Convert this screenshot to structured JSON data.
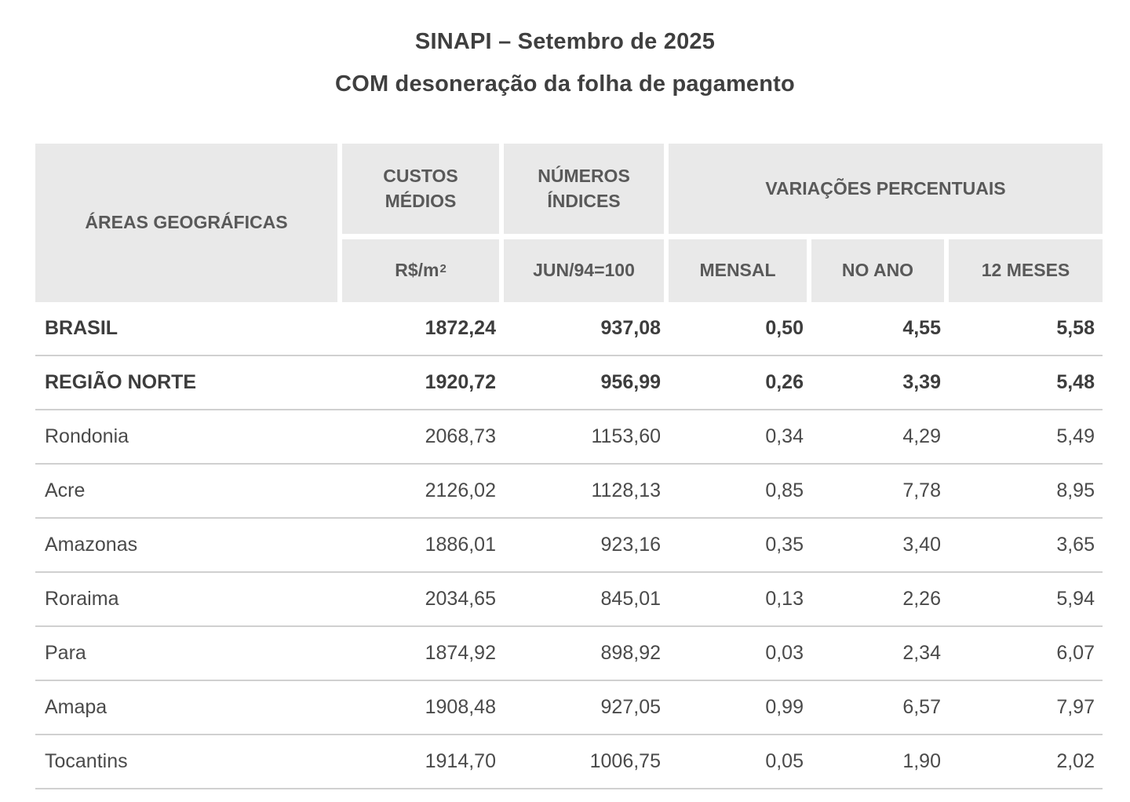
{
  "title": {
    "line1": "SINAPI – Setembro de 2025",
    "line2": "COM desoneração da folha de pagamento"
  },
  "colors": {
    "header_background": "#e9e9e9",
    "header_text": "#595959",
    "body_text": "#4a4a4a",
    "bold_text": "#3d3d3d",
    "row_divider": "#d0d0d0",
    "page_background": "#ffffff"
  },
  "table": {
    "headers": {
      "areas": "ÁREAS GEOGRÁFICAS",
      "custos": "CUSTOS MÉDIOS",
      "custos_unit_base": "R$/m",
      "custos_unit_sup": "2",
      "indices": "NÚMEROS ÍNDICES",
      "indices_unit": "JUN/94=100",
      "variacoes": "VARIAÇÕES PERCENTUAIS",
      "mensal": "MENSAL",
      "no_ano": "NO ANO",
      "doze_meses": "12 MESES"
    },
    "rows": [
      {
        "name": "BRASIL",
        "custo_medio": "1872,24",
        "numero_indice": "937,08",
        "mensal": "0,50",
        "no_ano": "4,55",
        "doze_meses": "5,58",
        "bold": true
      },
      {
        "name": "REGIÃO NORTE",
        "custo_medio": "1920,72",
        "numero_indice": "956,99",
        "mensal": "0,26",
        "no_ano": "3,39",
        "doze_meses": "5,48",
        "bold": true
      },
      {
        "name": "Rondonia",
        "custo_medio": "2068,73",
        "numero_indice": "1153,60",
        "mensal": "0,34",
        "no_ano": "4,29",
        "doze_meses": "5,49",
        "bold": false
      },
      {
        "name": "Acre",
        "custo_medio": "2126,02",
        "numero_indice": "1128,13",
        "mensal": "0,85",
        "no_ano": "7,78",
        "doze_meses": "8,95",
        "bold": false
      },
      {
        "name": "Amazonas",
        "custo_medio": "1886,01",
        "numero_indice": "923,16",
        "mensal": "0,35",
        "no_ano": "3,40",
        "doze_meses": "3,65",
        "bold": false
      },
      {
        "name": "Roraima",
        "custo_medio": "2034,65",
        "numero_indice": "845,01",
        "mensal": "0,13",
        "no_ano": "2,26",
        "doze_meses": "5,94",
        "bold": false
      },
      {
        "name": "Para",
        "custo_medio": "1874,92",
        "numero_indice": "898,92",
        "mensal": "0,03",
        "no_ano": "2,34",
        "doze_meses": "6,07",
        "bold": false
      },
      {
        "name": "Amapa",
        "custo_medio": "1908,48",
        "numero_indice": "927,05",
        "mensal": "0,99",
        "no_ano": "6,57",
        "doze_meses": "7,97",
        "bold": false
      },
      {
        "name": "Tocantins",
        "custo_medio": "1914,70",
        "numero_indice": "1006,75",
        "mensal": "0,05",
        "no_ano": "1,90",
        "doze_meses": "2,02",
        "bold": false
      }
    ]
  },
  "chart_data": {
    "type": "table",
    "title": "SINAPI – Setembro de 2025 — COM desoneração da folha de pagamento",
    "columns": [
      "ÁREAS GEOGRÁFICAS",
      "CUSTOS MÉDIOS R$/m2",
      "NÚMEROS ÍNDICES JUN/94=100",
      "VARIAÇÕES PERCENTUAIS MENSAL",
      "VARIAÇÕES PERCENTUAIS NO ANO",
      "VARIAÇÕES PERCENTUAIS 12 MESES"
    ],
    "rows": [
      [
        "BRASIL",
        1872.24,
        937.08,
        0.5,
        4.55,
        5.58
      ],
      [
        "REGIÃO NORTE",
        1920.72,
        956.99,
        0.26,
        3.39,
        5.48
      ],
      [
        "Rondonia",
        2068.73,
        1153.6,
        0.34,
        4.29,
        5.49
      ],
      [
        "Acre",
        2126.02,
        1128.13,
        0.85,
        7.78,
        8.95
      ],
      [
        "Amazonas",
        1886.01,
        923.16,
        0.35,
        3.4,
        3.65
      ],
      [
        "Roraima",
        2034.65,
        845.01,
        0.13,
        2.26,
        5.94
      ],
      [
        "Para",
        1874.92,
        898.92,
        0.03,
        2.34,
        6.07
      ],
      [
        "Amapa",
        1908.48,
        927.05,
        0.99,
        6.57,
        7.97
      ],
      [
        "Tocantins",
        1914.7,
        1006.75,
        0.05,
        1.9,
        2.02
      ]
    ]
  }
}
